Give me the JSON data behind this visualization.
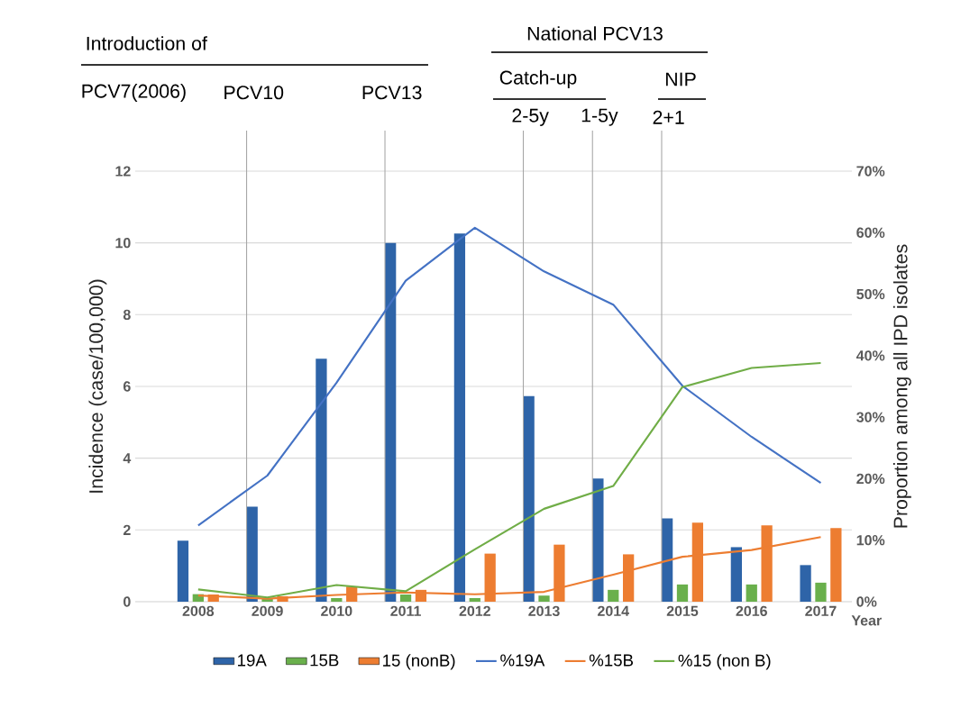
{
  "chart_data": {
    "type": "bar",
    "xlabel": "Year",
    "ylabel": "Incidence (case/100,000)",
    "y2label": "Proportion among all IPD isolates",
    "categories": [
      "2008",
      "2009",
      "2010",
      "2011",
      "2012",
      "2013",
      "2014",
      "2015",
      "2016",
      "2017"
    ],
    "series": [
      {
        "name": "19A",
        "color": "#2e64a8",
        "values": [
          1.7,
          2.65,
          6.77,
          10.0,
          10.26,
          5.73,
          3.43,
          2.32,
          1.52,
          1.02
        ]
      },
      {
        "name": "15B",
        "color": "#6ab04c",
        "values": [
          0.21,
          0.1,
          0.1,
          0.2,
          0.1,
          0.17,
          0.33,
          0.48,
          0.48,
          0.53
        ]
      },
      {
        "name": "15 (nonB)",
        "color": "#ed7d31",
        "values": [
          0.2,
          0.15,
          0.42,
          0.33,
          1.34,
          1.59,
          1.32,
          2.2,
          2.13,
          2.05
        ]
      },
      {
        "name": "%19A",
        "type": "line",
        "axis": "y2",
        "color": "#4472c4",
        "values": [
          12.4,
          20.5,
          35.6,
          52.2,
          60.8,
          53.7,
          48.3,
          35.1,
          26.8,
          19.3
        ]
      },
      {
        "name": "%15B",
        "type": "line",
        "axis": "y2",
        "color": "#ed7d31",
        "values": [
          1.0,
          0.5,
          1.1,
          1.5,
          1.2,
          1.6,
          4.4,
          7.3,
          8.4,
          10.5
        ]
      },
      {
        "name": "%15 (non B)",
        "type": "line",
        "axis": "y2",
        "color": "#70ad47",
        "values": [
          2.0,
          0.7,
          2.7,
          1.7,
          8.5,
          15.1,
          18.8,
          34.9,
          38.0,
          38.8
        ]
      }
    ],
    "ylim": [
      0,
      12
    ],
    "yticks": [
      0,
      2,
      4,
      6,
      8,
      10,
      12
    ],
    "y2lim": [
      0,
      70
    ],
    "y2ticks": [
      {
        "value": 0,
        "label": "0%"
      },
      {
        "value": 10,
        "label": "10%"
      },
      {
        "value": 20,
        "label": "20%"
      },
      {
        "value": 30,
        "label": "30%"
      },
      {
        "value": 40,
        "label": "40%"
      },
      {
        "value": 50,
        "label": "50%"
      },
      {
        "value": 60,
        "label": "60%"
      },
      {
        "value": 70,
        "label": "70%"
      }
    ],
    "grid": "y",
    "legend": "bottom",
    "ref_lines": [
      {
        "axis": "x",
        "value": "2009",
        "label": "PCV10",
        "color": "#a6a6a6"
      },
      {
        "axis": "x",
        "value": "2011",
        "label": "PCV13",
        "color": "#a6a6a6"
      },
      {
        "axis": "x",
        "value": "2013",
        "label": "2-5y",
        "color": "#a6a6a6"
      },
      {
        "axis": "x",
        "value": "2014",
        "label": "1-5y",
        "color": "#a6a6a6"
      },
      {
        "axis": "x",
        "value": "2015",
        "label": "2+1",
        "color": "#a6a6a6"
      }
    ],
    "annotations": [
      "Introduction of",
      "PCV7(2006)",
      "National PCV13",
      "Catch-up",
      "NIP"
    ]
  }
}
